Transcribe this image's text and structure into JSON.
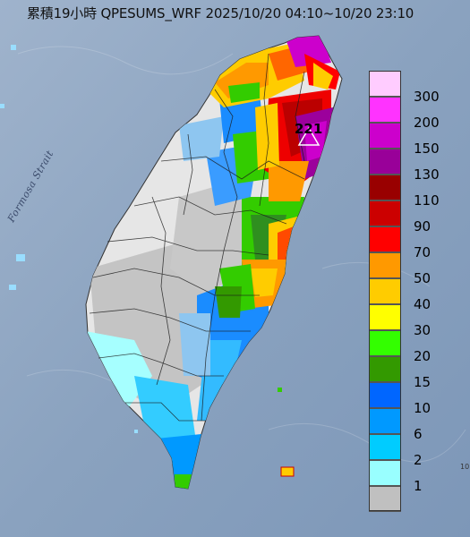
{
  "title": "累積19小時 QPESUMS_WRF 2025/10/20 04:10~10/20 23:10",
  "strait_label": "Formosa Strait",
  "max_value_label": "221",
  "scale_note": "10",
  "legend": {
    "colors": [
      "#ffccff",
      "#ff33ff",
      "#cc00cc",
      "#990099",
      "#990000",
      "#cc0000",
      "#ff0000",
      "#ff9900",
      "#ffcc00",
      "#ffff00",
      "#33ff00",
      "#339900",
      "#0066ff",
      "#0099ff",
      "#00ccff",
      "#99ffff",
      "#c0c0c0"
    ],
    "labels": [
      "300",
      "200",
      "150",
      "130",
      "110",
      "90",
      "70",
      "50",
      "40",
      "30",
      "20",
      "15",
      "10",
      "6",
      "2",
      "1"
    ]
  },
  "colors": {
    "sea": "#8fa6c2",
    "land_none": "#e4e4e4",
    "boundary": "#222222"
  }
}
